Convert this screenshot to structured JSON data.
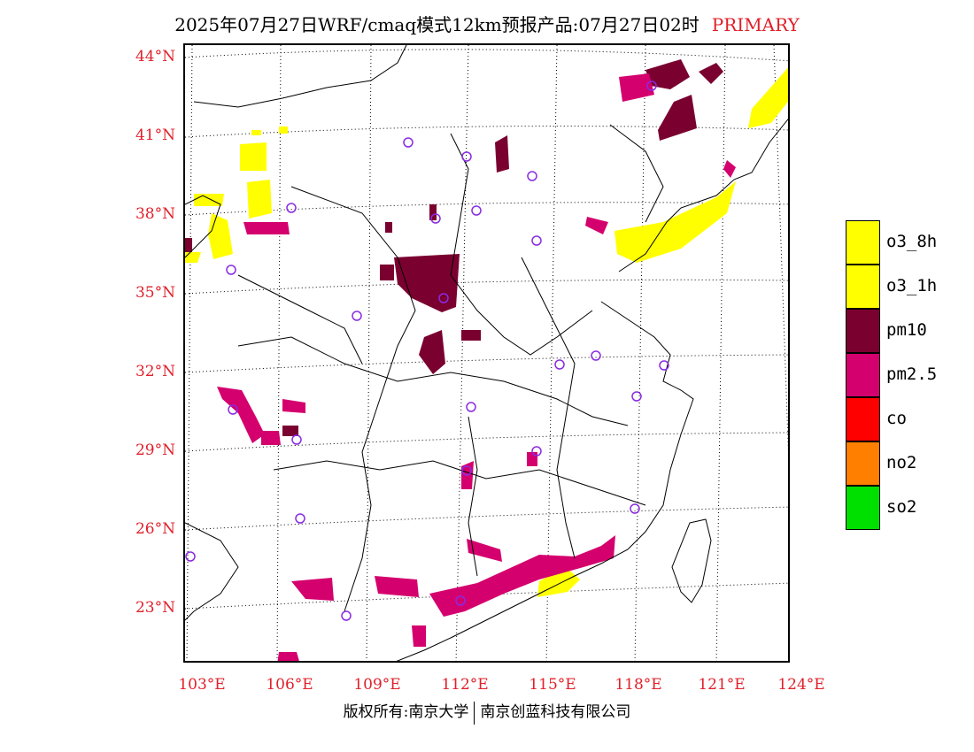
{
  "title": {
    "text": "2025年07月27日WRF/cmaq模式12km预报产品:07月27日02时",
    "tag": "PRIMARY"
  },
  "axes": {
    "lat_labels": [
      "44°N",
      "41°N",
      "38°N",
      "35°N",
      "32°N",
      "29°N",
      "26°N",
      "23°N"
    ],
    "lon_labels": [
      "103°E",
      "106°E",
      "109°E",
      "112°E",
      "115°E",
      "118°E",
      "121°E",
      "124°E"
    ]
  },
  "legend": [
    {
      "label": "o3_8h",
      "color": "#ffff00"
    },
    {
      "label": "o3_1h",
      "color": "#ffff00"
    },
    {
      "label": "pm10",
      "color": "#7a0030"
    },
    {
      "label": "pm2.5",
      "color": "#d4006e"
    },
    {
      "label": "co",
      "color": "#ff0000"
    },
    {
      "label": "no2",
      "color": "#ff7f00"
    },
    {
      "label": "so2",
      "color": "#00e000"
    }
  ],
  "colors": {
    "axis_label": "#e0202a",
    "station_marker": "#8a2be2",
    "o3": "#ffff00",
    "pm10": "#7a0030",
    "pm25": "#d4006e"
  },
  "footer": {
    "left": "版权所有:南京大学",
    "right": "南京创蓝科技有限公司"
  }
}
